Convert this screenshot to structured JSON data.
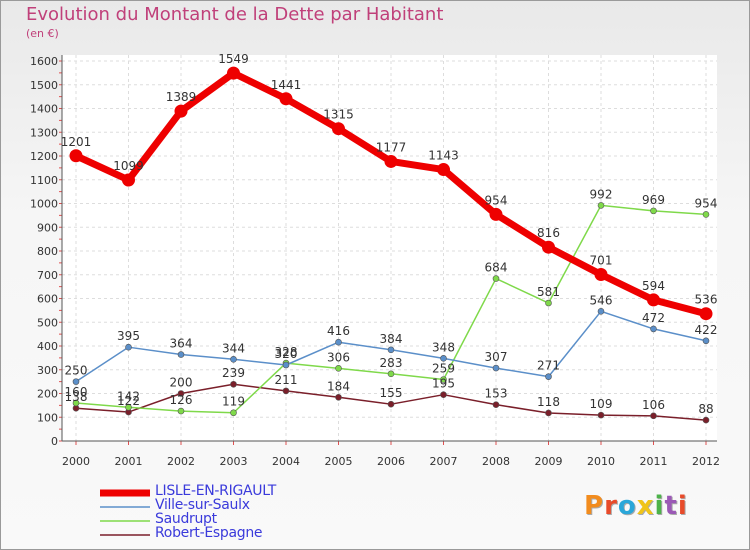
{
  "chart_data": {
    "type": "line",
    "title": "Evolution du Montant de la Dette par Habitant",
    "subtitle": "(en €)",
    "x": [
      "2000",
      "2001",
      "2002",
      "2003",
      "2004",
      "2005",
      "2006",
      "2007",
      "2008",
      "2009",
      "2010",
      "2011",
      "2012"
    ],
    "ylim": [
      0,
      1600
    ],
    "yticks": [
      0,
      100,
      200,
      300,
      400,
      500,
      600,
      700,
      800,
      900,
      1000,
      1100,
      1200,
      1300,
      1400,
      1500,
      1600
    ],
    "grid": true,
    "legend_position": "bottom-left",
    "series": [
      {
        "name": "LISLE-EN-RIGAULT",
        "color": "#ee0000",
        "values": [
          1201,
          1099,
          1389,
          1549,
          1441,
          1315,
          1177,
          1143,
          954,
          816,
          701,
          594,
          536
        ]
      },
      {
        "name": "Ville-sur-Saulx",
        "color": "#5b8fc9",
        "values": [
          250,
          395,
          364,
          344,
          320,
          416,
          384,
          348,
          307,
          271,
          546,
          472,
          422
        ]
      },
      {
        "name": "Saudrupt",
        "color": "#7fd94a",
        "values": [
          160,
          142,
          126,
          119,
          328,
          306,
          283,
          259,
          684,
          581,
          992,
          969,
          954
        ]
      },
      {
        "name": "Robert-Espagne",
        "color": "#7a1f2a",
        "values": [
          138,
          122,
          200,
          239,
          211,
          184,
          155,
          195,
          153,
          118,
          109,
          106,
          88
        ]
      }
    ]
  },
  "logo": {
    "text": "Proxiti",
    "colors": [
      "#f28c1e",
      "#e84b2a",
      "#2aa7d9",
      "#f0c419",
      "#4db34a",
      "#9b59b6",
      "#e84b2a"
    ]
  }
}
